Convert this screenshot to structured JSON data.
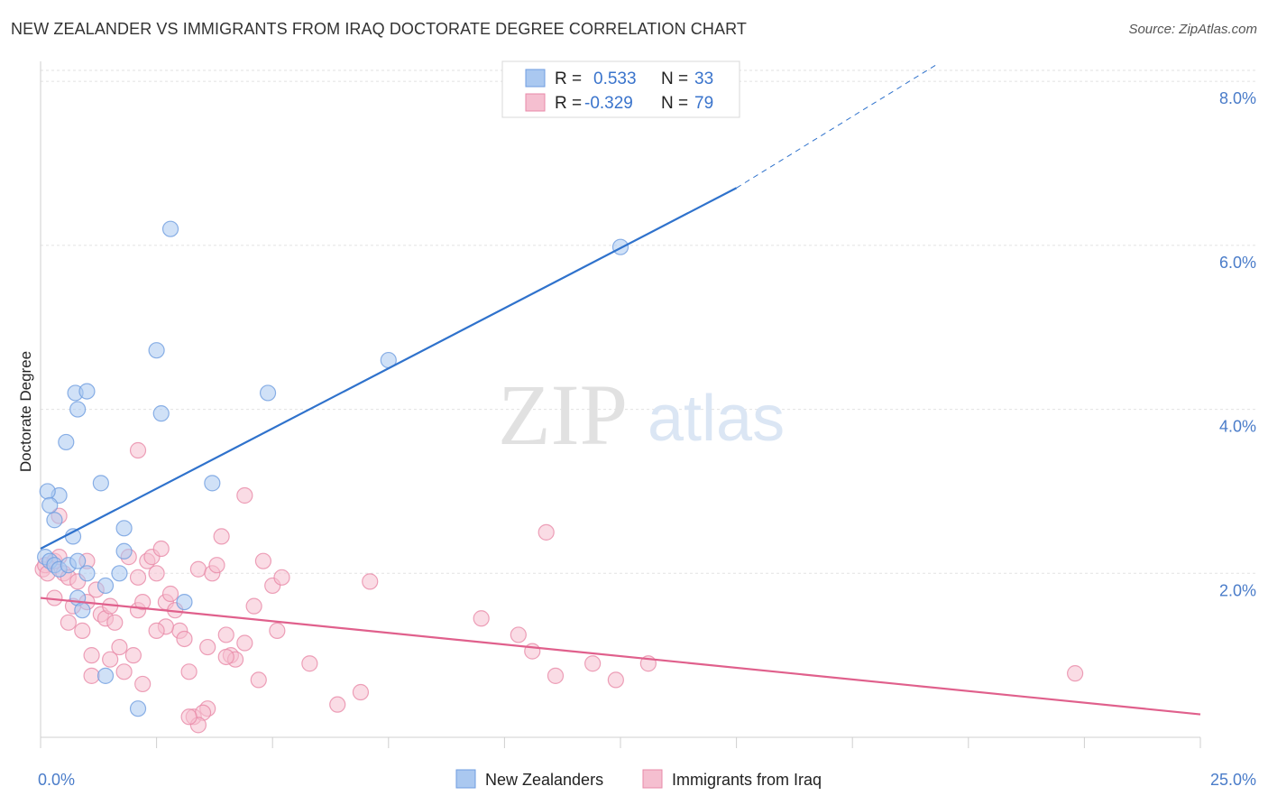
{
  "chart_data": {
    "type": "scatter",
    "title": "NEW ZEALANDER VS IMMIGRANTS FROM IRAQ DOCTORATE DEGREE CORRELATION CHART",
    "source": "Source: ZipAtlas.com",
    "xlabel": "",
    "ylabel": "Doctorate Degree",
    "xlim": [
      0,
      25
    ],
    "ylim": [
      0,
      8.2
    ],
    "x_tick_labels": [
      {
        "value": 0,
        "label": "0.0%"
      },
      {
        "value": 25,
        "label": "25.0%"
      }
    ],
    "y_tick_labels": [
      {
        "value": 2,
        "label": "2.0%"
      },
      {
        "value": 4,
        "label": "4.0%"
      },
      {
        "value": 6,
        "label": "6.0%"
      },
      {
        "value": 8,
        "label": "8.0%"
      }
    ],
    "watermark": {
      "part1": "ZIP",
      "part2": "atlas"
    },
    "legend_top": [
      {
        "r_label": "R =",
        "r_value": "0.533",
        "n_label": "N =",
        "n_value": "33"
      },
      {
        "r_label": "R =",
        "r_value": "-0.329",
        "n_label": "N =",
        "n_value": "79"
      }
    ],
    "series": [
      {
        "name": "New Zealanders",
        "color": "#6f9de0",
        "fill": "#aac8f0",
        "trend": {
          "x0": 0,
          "y0": 2.3,
          "x1": 15,
          "y1": 6.7,
          "dashed_to_x": 19.3,
          "dashed_to_y": 8.2,
          "color": "#2f72cc"
        },
        "points": [
          [
            0.1,
            2.2
          ],
          [
            0.2,
            2.15
          ],
          [
            0.3,
            2.1
          ],
          [
            0.4,
            2.05
          ],
          [
            0.6,
            2.1
          ],
          [
            0.8,
            2.15
          ],
          [
            1.0,
            2.0
          ],
          [
            1.4,
            1.85
          ],
          [
            0.8,
            1.7
          ],
          [
            0.9,
            1.55
          ],
          [
            1.7,
            2.0
          ],
          [
            1.8,
            2.27
          ],
          [
            1.8,
            2.55
          ],
          [
            0.3,
            2.65
          ],
          [
            0.4,
            2.95
          ],
          [
            0.15,
            3.0
          ],
          [
            0.2,
            2.83
          ],
          [
            1.3,
            3.1
          ],
          [
            0.7,
            2.45
          ],
          [
            0.55,
            3.6
          ],
          [
            0.8,
            4.0
          ],
          [
            0.75,
            4.2
          ],
          [
            1.0,
            4.22
          ],
          [
            2.5,
            4.72
          ],
          [
            2.6,
            3.95
          ],
          [
            2.8,
            6.2
          ],
          [
            3.7,
            3.1
          ],
          [
            4.9,
            4.2
          ],
          [
            7.5,
            4.6
          ],
          [
            12.5,
            5.98
          ],
          [
            1.4,
            0.75
          ],
          [
            2.1,
            0.35
          ],
          [
            3.1,
            1.65
          ]
        ]
      },
      {
        "name": "Immigrants from Iraq",
        "color": "#e88aa8",
        "fill": "#f5bfd0",
        "trend": {
          "x0": 0,
          "y0": 1.7,
          "x1": 25,
          "y1": 0.28,
          "color": "#e0608c"
        },
        "points": [
          [
            0.05,
            2.05
          ],
          [
            0.1,
            2.1
          ],
          [
            0.15,
            2.0
          ],
          [
            0.3,
            2.15
          ],
          [
            0.4,
            2.2
          ],
          [
            0.5,
            2.0
          ],
          [
            0.6,
            1.95
          ],
          [
            0.8,
            1.9
          ],
          [
            0.3,
            1.7
          ],
          [
            0.4,
            2.7
          ],
          [
            0.6,
            1.4
          ],
          [
            0.7,
            1.6
          ],
          [
            0.9,
            1.3
          ],
          [
            1.0,
            1.65
          ],
          [
            1.0,
            2.15
          ],
          [
            1.2,
            1.8
          ],
          [
            1.3,
            1.5
          ],
          [
            1.4,
            1.45
          ],
          [
            1.5,
            1.6
          ],
          [
            1.6,
            1.4
          ],
          [
            1.1,
            1.0
          ],
          [
            1.7,
            1.1
          ],
          [
            1.8,
            0.8
          ],
          [
            2.0,
            1.0
          ],
          [
            2.1,
            1.55
          ],
          [
            2.2,
            1.65
          ],
          [
            2.3,
            2.15
          ],
          [
            2.4,
            2.2
          ],
          [
            2.5,
            2.0
          ],
          [
            2.6,
            2.3
          ],
          [
            2.7,
            1.65
          ],
          [
            2.8,
            1.75
          ],
          [
            2.9,
            1.55
          ],
          [
            3.0,
            1.3
          ],
          [
            3.1,
            1.2
          ],
          [
            3.2,
            0.8
          ],
          [
            3.3,
            0.25
          ],
          [
            3.4,
            2.05
          ],
          [
            3.6,
            1.1
          ],
          [
            3.7,
            2.0
          ],
          [
            3.8,
            2.1
          ],
          [
            3.9,
            2.45
          ],
          [
            4.0,
            1.25
          ],
          [
            4.1,
            1.0
          ],
          [
            4.2,
            0.95
          ],
          [
            4.4,
            1.15
          ],
          [
            4.6,
            1.6
          ],
          [
            4.7,
            0.7
          ],
          [
            4.8,
            2.15
          ],
          [
            5.0,
            1.85
          ],
          [
            5.1,
            1.3
          ],
          [
            5.2,
            1.95
          ],
          [
            5.8,
            0.9
          ],
          [
            6.4,
            0.4
          ],
          [
            6.9,
            0.55
          ],
          [
            7.1,
            1.9
          ],
          [
            2.1,
            3.5
          ],
          [
            4.4,
            2.95
          ],
          [
            2.7,
            1.35
          ],
          [
            2.5,
            1.3
          ],
          [
            3.6,
            0.35
          ],
          [
            3.5,
            0.3
          ],
          [
            3.4,
            0.15
          ],
          [
            3.2,
            0.25
          ],
          [
            9.5,
            1.45
          ],
          [
            10.3,
            1.25
          ],
          [
            10.6,
            1.05
          ],
          [
            10.9,
            2.5
          ],
          [
            11.1,
            0.75
          ],
          [
            11.9,
            0.9
          ],
          [
            12.4,
            0.7
          ],
          [
            13.1,
            0.9
          ],
          [
            22.3,
            0.78
          ],
          [
            1.5,
            0.95
          ],
          [
            1.9,
            2.2
          ],
          [
            2.1,
            1.95
          ],
          [
            2.2,
            0.65
          ],
          [
            4.0,
            0.98
          ],
          [
            1.1,
            0.75
          ]
        ]
      }
    ],
    "legend_bottom": [
      "New Zealanders",
      "Immigrants from Iraq"
    ]
  }
}
